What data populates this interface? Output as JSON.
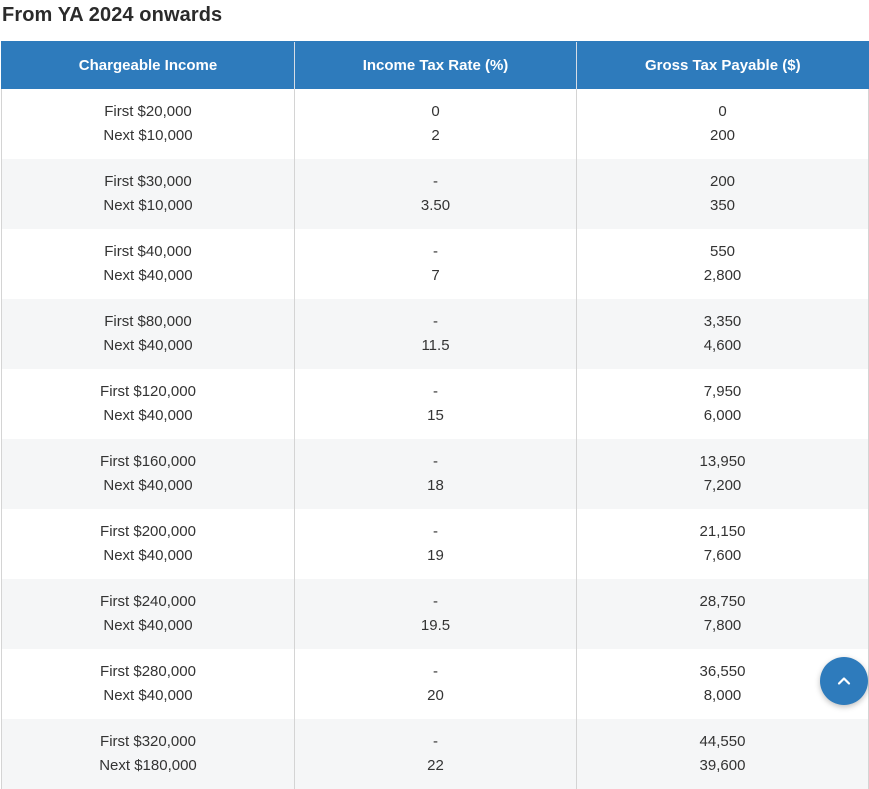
{
  "section": {
    "title": "From YA 2024 onwards"
  },
  "table": {
    "headers": [
      "Chargeable Income",
      "Income Tax Rate (%)",
      "Gross Tax Payable ($)"
    ],
    "rows": [
      {
        "income": [
          "First $20,000",
          "Next $10,000"
        ],
        "rate": [
          "0",
          "2"
        ],
        "tax": [
          "0",
          "200"
        ]
      },
      {
        "income": [
          "First $30,000",
          "Next $10,000"
        ],
        "rate": [
          "-",
          "3.50"
        ],
        "tax": [
          "200",
          "350"
        ]
      },
      {
        "income": [
          "First $40,000",
          "Next $40,000"
        ],
        "rate": [
          "-",
          "7"
        ],
        "tax": [
          "550",
          "2,800"
        ]
      },
      {
        "income": [
          "First $80,000",
          "Next $40,000"
        ],
        "rate": [
          "-",
          "11.5"
        ],
        "tax": [
          "3,350",
          "4,600"
        ]
      },
      {
        "income": [
          "First $120,000",
          "Next $40,000"
        ],
        "rate": [
          "-",
          "15"
        ],
        "tax": [
          "7,950",
          "6,000"
        ]
      },
      {
        "income": [
          "First $160,000",
          "Next $40,000"
        ],
        "rate": [
          "-",
          "18"
        ],
        "tax": [
          "13,950",
          "7,200"
        ]
      },
      {
        "income": [
          "First $200,000",
          "Next $40,000"
        ],
        "rate": [
          "-",
          "19"
        ],
        "tax": [
          "21,150",
          "7,600"
        ]
      },
      {
        "income": [
          "First $240,000",
          "Next $40,000"
        ],
        "rate": [
          "-",
          "19.5"
        ],
        "tax": [
          "28,750",
          "7,800"
        ]
      },
      {
        "income": [
          "First $280,000",
          "Next $40,000"
        ],
        "rate": [
          "-",
          "20"
        ],
        "tax": [
          "36,550",
          "8,000"
        ]
      },
      {
        "income": [
          "First $320,000",
          "Next $180,000"
        ],
        "rate": [
          "-",
          "22"
        ],
        "tax": [
          "44,550",
          "39,600"
        ]
      }
    ]
  },
  "back_to_top": {
    "icon": "chevron-up-icon",
    "color": "#2e7bbc"
  },
  "colors": {
    "header_bg": "#2e7bbc",
    "header_text": "#ffffff",
    "stripe_bg": "#f5f6f7"
  }
}
